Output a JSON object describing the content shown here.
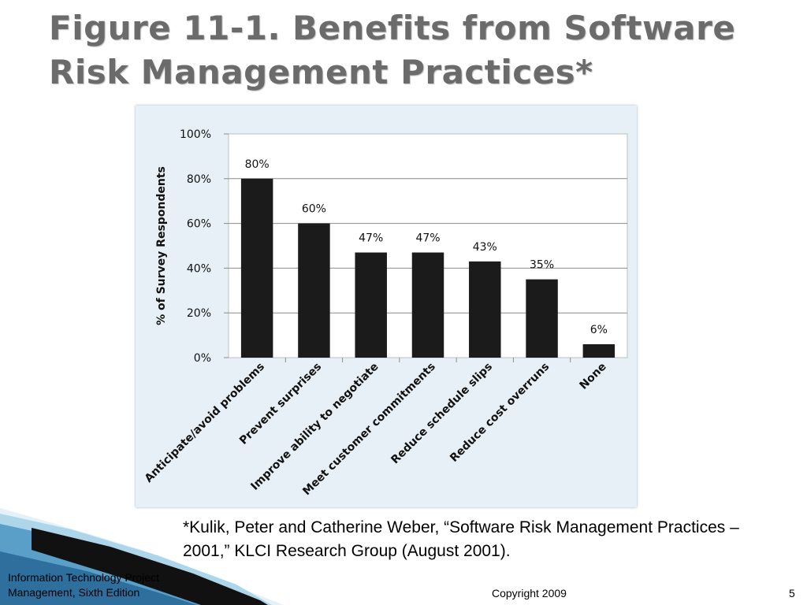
{
  "slide": {
    "title": "Figure 11-1. Benefits from Software Risk Management Practices*",
    "footnote": "*Kulik, Peter and Catherine Weber, “Software Risk Management Practices – 2001,” KLCI Research Group (August 2001).",
    "footer_left": "Information Technology Project Management, Sixth Edition",
    "footer_center": "Copyright 2009",
    "page_number": "5"
  },
  "colors": {
    "panel_background": "#e6f0f6",
    "bar": "#1b1b1b",
    "title": "#6b6b6b"
  },
  "chart_data": {
    "type": "bar",
    "title": "",
    "xlabel": "",
    "ylabel": "% of Survey Respondents",
    "ylim": [
      0,
      100
    ],
    "yticks": [
      "0%",
      "20%",
      "40%",
      "60%",
      "80%",
      "100%"
    ],
    "grid": true,
    "categories": [
      "Anticipate/avoid problems",
      "Prevent surprises",
      "Improve ability to negotiate",
      "Meet customer commitments",
      "Reduce schedule slips",
      "Reduce cost overruns",
      "None"
    ],
    "values": [
      80,
      60,
      47,
      47,
      43,
      35,
      6
    ],
    "data_labels": [
      "80%",
      "60%",
      "47%",
      "47%",
      "43%",
      "35%",
      "6%"
    ]
  }
}
